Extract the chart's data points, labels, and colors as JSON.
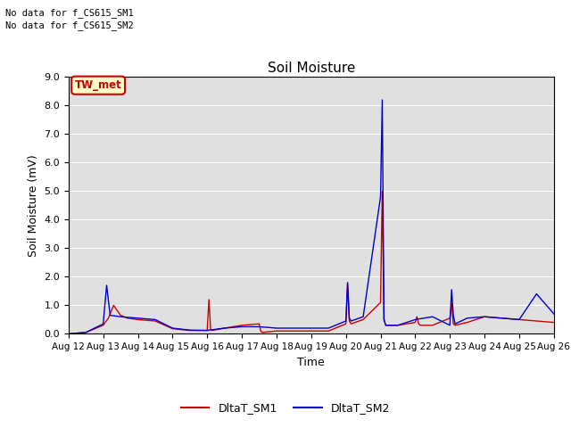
{
  "title": "Soil Moisture",
  "ylabel": "Soil Moisture (mV)",
  "xlabel": "Time",
  "ylim": [
    0,
    9.0
  ],
  "yticks": [
    0.0,
    1.0,
    2.0,
    3.0,
    4.0,
    5.0,
    6.0,
    7.0,
    8.0,
    9.0
  ],
  "nodata_text": [
    "No data for f_CS615_SM1",
    "No data for f_CS615_SM2"
  ],
  "legend_label_text": "TW_met",
  "legend_label_color": "#cc0000",
  "legend_label_bg": "#ffffcc",
  "background_color": "#e0e0e0",
  "line1_color": "#cc0000",
  "line2_color": "#0000cc",
  "line1_label": "DltaT_SM1",
  "line2_label": "DltaT_SM2",
  "xtick_labels": [
    "Aug 12",
    "Aug 13",
    "Aug 14",
    "Aug 15",
    "Aug 16",
    "Aug 17",
    "Aug 18",
    "Aug 19",
    "Aug 20",
    "Aug 21",
    "Aug 22",
    "Aug 23",
    "Aug 24",
    "Aug 25",
    "Aug 26"
  ],
  "sm1_x": [
    0,
    0.5,
    1.0,
    1.15,
    1.3,
    1.5,
    1.7,
    2.0,
    2.5,
    3.0,
    3.5,
    4.0,
    4.05,
    4.1,
    4.15,
    4.5,
    5.0,
    5.5,
    5.55,
    5.6,
    6.0,
    6.5,
    7.0,
    7.5,
    8.0,
    8.05,
    8.1,
    8.15,
    8.5,
    9.0,
    9.05,
    9.1,
    9.15,
    9.5,
    10.0,
    10.05,
    10.1,
    10.15,
    10.5,
    11.0,
    11.05,
    11.1,
    11.15,
    11.5,
    12.0,
    12.5,
    13.0,
    13.5,
    14.0
  ],
  "sm1_y": [
    0.0,
    0.05,
    0.3,
    0.55,
    1.0,
    0.65,
    0.55,
    0.5,
    0.45,
    0.18,
    0.12,
    0.12,
    1.2,
    0.15,
    0.12,
    0.2,
    0.3,
    0.35,
    0.08,
    0.05,
    0.1,
    0.1,
    0.1,
    0.1,
    0.35,
    1.75,
    0.45,
    0.35,
    0.5,
    1.1,
    5.0,
    0.5,
    0.3,
    0.3,
    0.4,
    0.6,
    0.35,
    0.3,
    0.3,
    0.55,
    1.05,
    0.35,
    0.3,
    0.4,
    0.6,
    0.55,
    0.5,
    0.45,
    0.4
  ],
  "sm2_x": [
    0,
    0.5,
    1.0,
    1.1,
    1.2,
    1.5,
    2.0,
    2.5,
    3.0,
    3.5,
    4.0,
    4.5,
    5.0,
    5.5,
    6.0,
    6.5,
    7.0,
    7.5,
    8.0,
    8.05,
    8.1,
    8.15,
    8.5,
    9.0,
    9.05,
    9.1,
    9.15,
    9.5,
    10.0,
    10.5,
    11.0,
    11.05,
    11.1,
    11.15,
    11.5,
    12.0,
    12.5,
    13.0,
    13.5,
    14.0
  ],
  "sm2_y": [
    0.0,
    0.05,
    0.35,
    1.7,
    0.65,
    0.6,
    0.55,
    0.5,
    0.2,
    0.13,
    0.12,
    0.2,
    0.25,
    0.25,
    0.2,
    0.2,
    0.2,
    0.2,
    0.45,
    1.8,
    0.55,
    0.45,
    0.6,
    4.8,
    8.2,
    0.5,
    0.3,
    0.3,
    0.5,
    0.6,
    0.3,
    1.55,
    0.65,
    0.35,
    0.55,
    0.6,
    0.55,
    0.5,
    1.4,
    0.7
  ]
}
